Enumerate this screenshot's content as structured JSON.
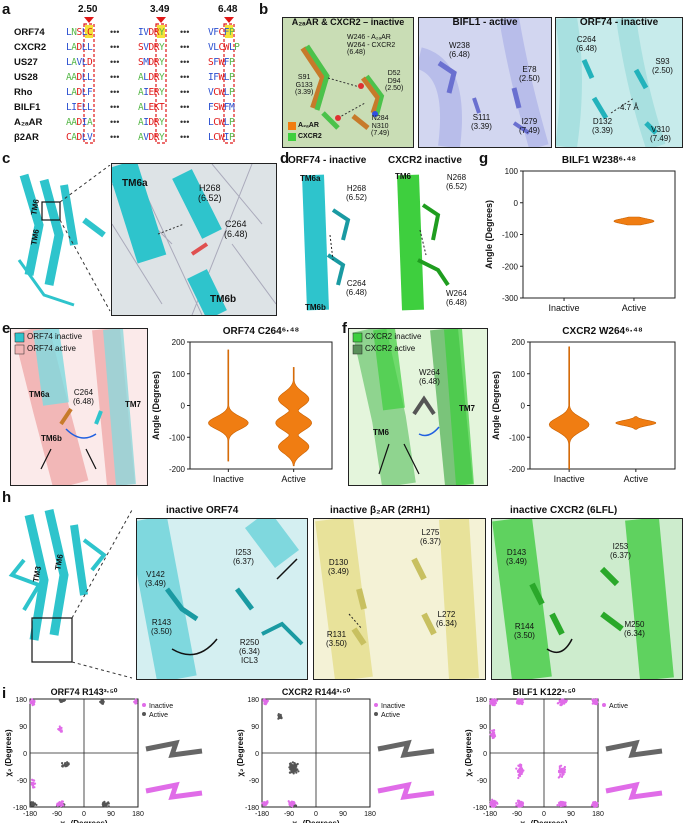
{
  "panel_letters": [
    "a",
    "b",
    "c",
    "d",
    "e",
    "f",
    "g",
    "h",
    "i"
  ],
  "panel_a": {
    "markers": [
      "2.50",
      "3.49",
      "6.48"
    ],
    "rows": [
      {
        "name": "ORF74",
        "seg1": "LNSLC",
        "seg2": "IVDRY",
        "seg3": "VFCFP"
      },
      {
        "name": "CXCR2",
        "seg1": "LADLL",
        "seg2": "SVDRY",
        "seg3": "VLCWLP"
      },
      {
        "name": "US27",
        "seg1": "LAVLD",
        "seg2": "SMDRY",
        "seg3": "SFWFP"
      },
      {
        "name": "US28",
        "seg1": "AADLL",
        "seg2": "ALDRY",
        "seg3": "IFWLP"
      },
      {
        "name": "Rho",
        "seg1": "LADLF",
        "seg2": "AIERY",
        "seg3": "VCWLP"
      },
      {
        "name": "BILF1",
        "seg1": "LIELL",
        "seg2": "ALEKT",
        "seg3": "FSWFM"
      },
      {
        "name": "A₂ₐAR",
        "seg1": "AADIA",
        "seg2": "AIDRY",
        "seg3": "LCWLP"
      },
      {
        "name": "β2AR",
        "seg1": "CADLV",
        "seg2": "AVDRY",
        "seg3": "LCWIP"
      }
    ],
    "ellipsis": "•••"
  },
  "panel_b": {
    "box1": {
      "title": "A₂ₐAR & CXCR2 – inactive",
      "labels": [
        "W246 - A₂ₐAR\nW264 - CXCR2\n(6.48)",
        "S91\nG133\n(3.39)",
        "D52\nD94\n(2.50)",
        "N284\nN310\n(7.49)"
      ],
      "legend": [
        "A₂ₐAR",
        "CXCR2"
      ]
    },
    "box2": {
      "title": "BIFL1 - active",
      "labels": [
        "W238\n(6.48)",
        "E78\n(2.50)",
        "S111\n(3.39)",
        "I279\n(7.49)"
      ]
    },
    "box3": {
      "title": "ORF74 - inactive",
      "labels": [
        "C264\n(6.48)",
        "S93\n(2.50)",
        "D132\n(3.39)",
        "4.7 Å",
        "V310\n(7.49)"
      ]
    }
  },
  "panel_c": {
    "labels": [
      "TM6",
      "TM6",
      "TM6a",
      "H268\n(6.52)",
      "C264\n(6.48)",
      "TM6b"
    ]
  },
  "panel_d": {
    "titles": [
      "ORF74 - inactive",
      "CXCR2 inactive"
    ],
    "labels": [
      "TM6a",
      "H268\n(6.52)",
      "C264\n(6.48)",
      "TM6b",
      "TM6",
      "N268\n(6.52)",
      "W264\n(6.48)"
    ]
  },
  "panel_e": {
    "legend": [
      "ORF74 inactive",
      "ORF74 active"
    ],
    "labels": [
      "TM6a",
      "C264\n(6.48)",
      "TM7",
      "TM6b"
    ]
  },
  "panel_f": {
    "legend": [
      "CXCR2 inactive",
      "CXCR2 active"
    ],
    "labels": [
      "W264\n(6.48)",
      "TM7",
      "TM6"
    ]
  },
  "panel_h": {
    "titles": [
      "inactive ORF74",
      "inactive β₂AR (2RH1)",
      "inactive CXCR2 (6LFL)"
    ],
    "box1": [
      "V142\n(3.49)",
      "I253\n(6.37)",
      "R143\n(3.50)",
      "R250\n(6.34)\nICL3"
    ],
    "box2": [
      "D130\n(3.49)",
      "L275\n(6.37)",
      "L272\n(6.34)",
      "R131\n(3.50)"
    ],
    "box3": [
      "D143\n(3.49)",
      "I253\n(6.37)",
      "R144\n(3.50)",
      "M250\n(6.34)"
    ],
    "overview": [
      "TM3",
      "TM6"
    ]
  },
  "colors": {
    "orange": "#f07d12",
    "magenta": "#e06ce8",
    "gray": "#555555",
    "cyan": "#2ec4cc",
    "green": "#3ecf3e",
    "pink": "#f2b7b7",
    "yellow": "#e8e29a",
    "highlight_red": "#e01818",
    "highlight_yellow": "#f5e23a"
  },
  "chart_data": [
    {
      "type": "violin",
      "title": "ORF74 C264⁶·⁴⁸",
      "ylabel": "Angle (Degrees)",
      "categories": [
        "Inactive",
        "Active"
      ],
      "ylim": [
        -200,
        200
      ],
      "yticks": [
        -200,
        -100,
        0,
        100,
        200
      ],
      "series": [
        {
          "name": "Inactive",
          "center": -55,
          "range": [
            -175,
            175
          ]
        },
        {
          "name": "Active",
          "center": -55,
          "range": [
            -190,
            120
          ],
          "modes": [
            -55,
            20,
            -130
          ]
        }
      ]
    },
    {
      "type": "violin",
      "title": "CXCR2 W264⁶·⁴⁸",
      "ylabel": "Angle (Degrees)",
      "categories": [
        "Inactive",
        "Active"
      ],
      "ylim": [
        -200,
        200
      ],
      "yticks": [
        -200,
        -100,
        0,
        100,
        200
      ],
      "series": [
        {
          "name": "Inactive",
          "center": -60,
          "range": [
            -200,
            185
          ]
        },
        {
          "name": "Active",
          "center": -55,
          "range": [
            -75,
            -35
          ]
        }
      ]
    },
    {
      "type": "violin",
      "title": "BILF1 W238⁶·⁴⁸",
      "ylabel": "Angle (Degrees)",
      "categories": [
        "Inactive",
        "Active"
      ],
      "ylim": [
        -300,
        100
      ],
      "yticks": [
        -300,
        -200,
        -100,
        0,
        100
      ],
      "series": [
        {
          "name": "Active",
          "center": -58,
          "range": [
            -70,
            -45
          ]
        }
      ]
    },
    {
      "type": "scatter",
      "title": "ORF74 R143³·⁵⁰",
      "xlabel": "χ₁ (Degrees)",
      "ylabel": "χ₂ (Degrees)",
      "xlim": [
        -180,
        180
      ],
      "ylim": [
        -180,
        180
      ],
      "xticks": [
        -180,
        -90,
        0,
        90,
        180
      ],
      "yticks": [
        -180,
        -90,
        0,
        90,
        180
      ],
      "legend": [
        "Inactive",
        "Active"
      ]
    },
    {
      "type": "scatter",
      "title": "CXCR2 R144³·⁵⁰",
      "xlabel": "χ₁ (Degrees)",
      "ylabel": "χ₂ (Degrees)",
      "xlim": [
        -180,
        180
      ],
      "ylim": [
        -180,
        180
      ],
      "xticks": [
        -180,
        -90,
        0,
        90,
        180
      ],
      "yticks": [
        -180,
        -90,
        0,
        90,
        180
      ],
      "legend": [
        "Inactive",
        "Active"
      ]
    },
    {
      "type": "scatter",
      "title": "BILF1 K122³·⁵⁰",
      "xlabel": "χ₁ (Degrees)",
      "ylabel": "χ₂ (Degrees)",
      "xlim": [
        -180,
        180
      ],
      "ylim": [
        -180,
        180
      ],
      "xticks": [
        -180,
        -90,
        0,
        90,
        180
      ],
      "yticks": [
        -180,
        -90,
        0,
        90,
        180
      ],
      "legend": [
        "Active"
      ]
    }
  ]
}
